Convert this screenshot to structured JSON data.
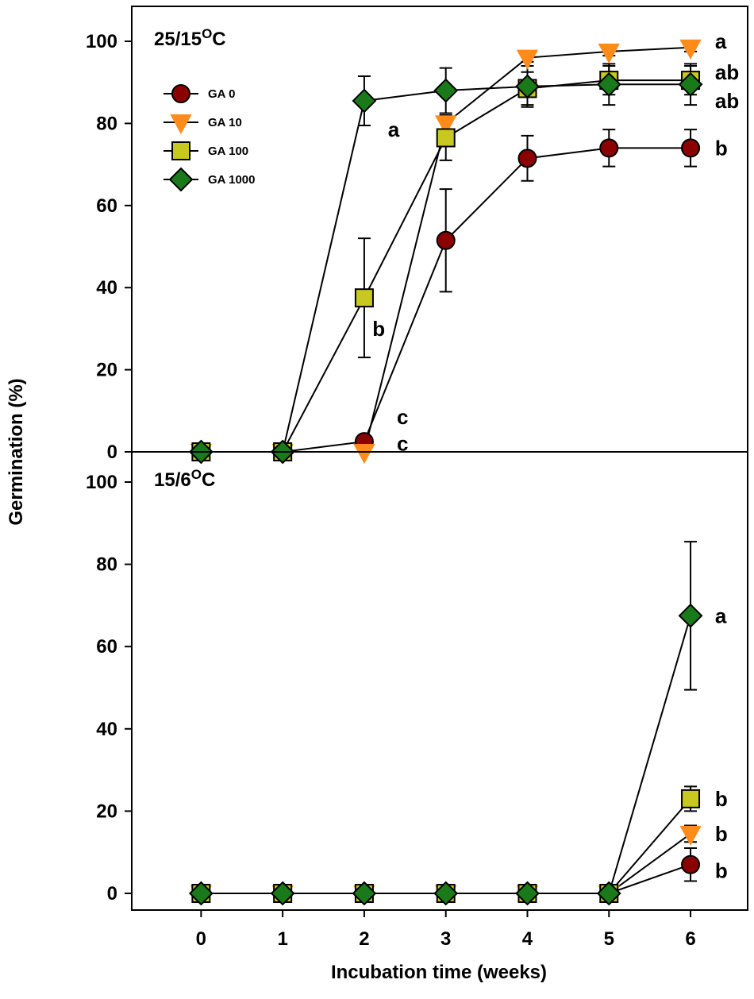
{
  "chart_data": [
    {
      "type": "line",
      "title": "25/15",
      "title_sup": "O",
      "title_unit": "C",
      "xlabel": "Incubation time (weeks)",
      "ylabel": "Germination (%)",
      "x": [
        0,
        1,
        2,
        3,
        4,
        5,
        6
      ],
      "xlim": [
        -0.85,
        6.7
      ],
      "ylim": [
        0,
        105
      ],
      "yticks": [
        0,
        20,
        40,
        60,
        80,
        100
      ],
      "series": [
        {
          "name": "GA 0",
          "marker": "circle",
          "color": "#8b0000",
          "values": [
            0,
            0,
            2.5,
            51.5,
            71.5,
            74,
            74
          ],
          "errors": [
            0,
            0,
            0,
            12.5,
            5.5,
            4.5,
            4.5
          ]
        },
        {
          "name": "GA 10",
          "marker": "triangle-down",
          "color": "#ff8c1a",
          "values": [
            0,
            0,
            0,
            80,
            96,
            97.5,
            98.5
          ],
          "errors": [
            0,
            0,
            0,
            2,
            1,
            1,
            1
          ]
        },
        {
          "name": "GA 100",
          "marker": "square",
          "color": "#c8c820",
          "values": [
            0,
            0,
            37.5,
            76.5,
            88.5,
            90.5,
            90.5
          ],
          "errors": [
            0,
            0,
            14.5,
            5.5,
            4,
            3.5,
            3.5
          ]
        },
        {
          "name": "GA 1000",
          "marker": "diamond",
          "color": "#1a7a1a",
          "values": [
            0,
            0,
            85.5,
            88,
            89,
            89.5,
            89.5
          ],
          "errors": [
            0,
            0,
            6,
            5.5,
            5,
            5,
            5
          ]
        }
      ],
      "annotations": [
        {
          "text": "a",
          "x": 6.3,
          "y": 100
        },
        {
          "text": "ab",
          "x": 6.3,
          "y": 92.5
        },
        {
          "text": "ab",
          "x": 6.3,
          "y": 85.5
        },
        {
          "text": "b",
          "x": 6.3,
          "y": 74
        },
        {
          "text": "a",
          "x": 2.29,
          "y": 78.5
        },
        {
          "text": "b",
          "x": 2.1,
          "y": 30
        },
        {
          "text": "c",
          "x": 2.4,
          "y": 8.5
        },
        {
          "text": "c",
          "x": 2.4,
          "y": 2
        }
      ]
    },
    {
      "type": "line",
      "title": "15/6",
      "title_sup": "O",
      "title_unit": "C",
      "xlabel": "Incubation time (weeks)",
      "ylabel": "Germination (%)",
      "x": [
        0,
        1,
        2,
        3,
        4,
        5,
        6
      ],
      "xlim": [
        -0.85,
        6.7
      ],
      "ylim": [
        0,
        105
      ],
      "yticks": [
        0,
        20,
        40,
        60,
        80,
        100
      ],
      "series": [
        {
          "name": "GA 0",
          "marker": "circle",
          "color": "#8b0000",
          "values": [
            0,
            0,
            0,
            0,
            0,
            0,
            7
          ],
          "errors": [
            0,
            0,
            0,
            0,
            0,
            0,
            4
          ]
        },
        {
          "name": "GA 10",
          "marker": "triangle-down",
          "color": "#ff8c1a",
          "values": [
            0,
            0,
            0,
            0,
            0,
            0,
            14.5
          ],
          "errors": [
            0,
            0,
            0,
            0,
            0,
            0,
            2
          ]
        },
        {
          "name": "GA 100",
          "marker": "square",
          "color": "#c8c820",
          "values": [
            0,
            0,
            0,
            0,
            0,
            0,
            23
          ],
          "errors": [
            0,
            0,
            0,
            0,
            0,
            0,
            3
          ]
        },
        {
          "name": "GA 1000",
          "marker": "diamond",
          "color": "#1a7a1a",
          "values": [
            0,
            0,
            0,
            0,
            0,
            0,
            67.5
          ],
          "errors": [
            0,
            0,
            0,
            0,
            0,
            0,
            18
          ]
        }
      ],
      "annotations": [
        {
          "text": "a",
          "x": 6.3,
          "y": 67.5
        },
        {
          "text": "b",
          "x": 6.3,
          "y": 23
        },
        {
          "text": "b",
          "x": 6.3,
          "y": 14.5
        },
        {
          "text": "b",
          "x": 6.3,
          "y": 5.5
        }
      ]
    }
  ]
}
